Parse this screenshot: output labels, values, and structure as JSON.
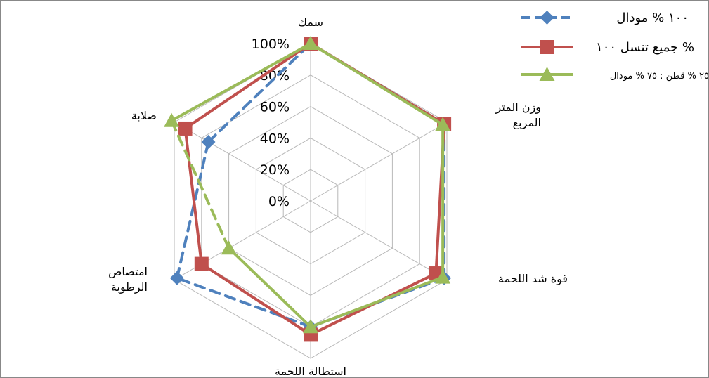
{
  "chart_data": {
    "type": "radar",
    "title": "",
    "categories": [
      [
        "سمك"
      ],
      [
        "وزن المتر",
        "المربع"
      ],
      [
        "قوة شد اللحمة"
      ],
      [
        "استطالة اللحمة"
      ],
      [
        "امتصاص",
        "الرطوبة"
      ],
      [
        "صلابة"
      ]
    ],
    "radial_ticks": [
      "0%",
      "20%",
      "40%",
      "60%",
      "80%",
      "100%"
    ],
    "rmax": 100,
    "series": [
      {
        "name": "١٠٠ % مودال",
        "color": "#4F81BD",
        "marker": "diamond",
        "dash": true,
        "values": [
          100,
          98,
          98,
          80,
          98,
          75
        ]
      },
      {
        "name": "جميع تنسل ١٠٠ %",
        "color": "#C0504D",
        "marker": "square",
        "dash": false,
        "values": [
          100,
          98,
          92,
          85,
          80,
          92
        ]
      },
      {
        "name": "٢٥ % قطن : ٧٥ % مودال",
        "color": "#9BBB59",
        "marker": "triangle",
        "dash": false,
        "values": [
          100,
          97,
          97,
          80,
          60,
          102
        ],
        "dashed_segment": [
          4,
          5
        ]
      }
    ]
  }
}
